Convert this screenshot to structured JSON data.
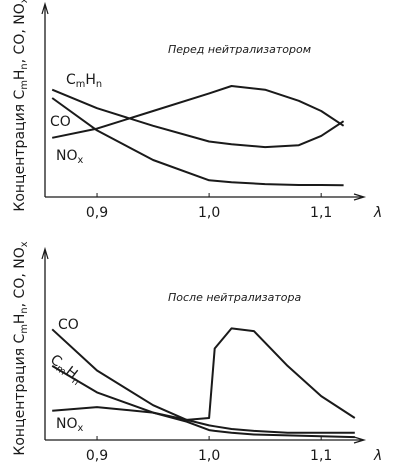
{
  "chart_data": [
    {
      "type": "line",
      "title": "Перед нейтрализатором",
      "y_label": "Концентрация CmHn, CO, NOx",
      "x_label": "λ",
      "x": [
        0.86,
        0.9,
        0.95,
        1.0,
        1.02,
        1.05,
        1.08,
        1.1,
        1.12
      ],
      "series": [
        {
          "name": "CmHn",
          "color": "#1a1a1a",
          "values": [
            58,
            48,
            38.5,
            30,
            28.5,
            27,
            28,
            33,
            41
          ]
        },
        {
          "name": "CO",
          "color": "#1a1a1a",
          "values": [
            32,
            37,
            46.5,
            56,
            60,
            58,
            52,
            46.5,
            38.5
          ]
        },
        {
          "name": "NOx",
          "color": "#1a1a1a",
          "values": [
            53.5,
            36,
            20,
            9,
            8,
            7,
            6.5,
            6.5,
            6.4
          ]
        }
      ],
      "xlim": [
        0.85,
        1.14
      ],
      "ylim": [
        0,
        100
      ],
      "xticks": [
        {
          "value": 0.9,
          "label": "0,9"
        },
        {
          "value": 1.0,
          "label": "1,0"
        },
        {
          "value": 1.1,
          "label": "1,1"
        }
      ],
      "grid": false
    },
    {
      "type": "line",
      "title": "После нейтрализатора",
      "y_label": "Концентрация CmHn, CO, NOx",
      "x_label": "λ",
      "x": [
        0.86,
        0.9,
        0.95,
        0.98,
        1.0,
        1.005,
        1.02,
        1.04,
        1.07,
        1.1,
        1.13
      ],
      "series": [
        {
          "name": "CO",
          "color": "#1a1a1a",
          "values": [
            60.5,
            38,
            19,
            11,
            8,
            7.5,
            6,
            5,
            4,
            4,
            4
          ]
        },
        {
          "name": "CmHn",
          "color": "#1a1a1a",
          "values": [
            40.5,
            26,
            15,
            10,
            5.4,
            5,
            4,
            3,
            2.5,
            2,
            1.6
          ]
        },
        {
          "name": "NOx",
          "color": "#1a1a1a",
          "values": [
            16,
            18,
            15,
            11,
            12,
            50,
            61,
            59.5,
            40.5,
            24,
            12
          ]
        }
      ],
      "xlim": [
        0.85,
        1.14
      ],
      "ylim": [
        0,
        100
      ],
      "xticks": [
        {
          "value": 0.9,
          "label": "0,9"
        },
        {
          "value": 1.0,
          "label": "1,0"
        },
        {
          "value": 1.1,
          "label": "1,1"
        }
      ],
      "grid": false
    }
  ]
}
